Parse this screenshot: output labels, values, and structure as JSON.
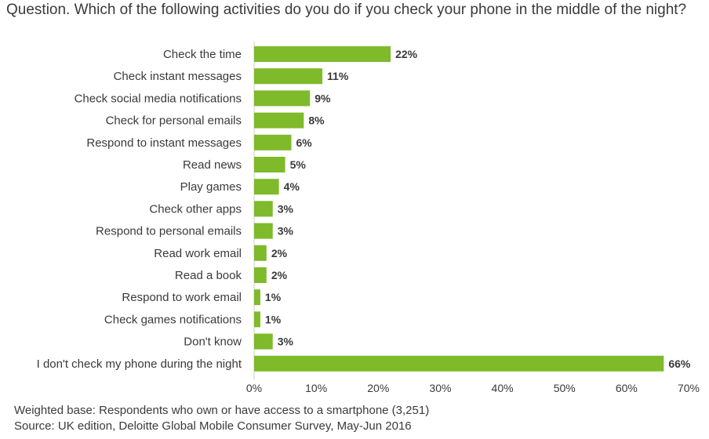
{
  "question": "Question. Which of the following activities do you do if you check your phone in the middle of the night?",
  "chart_data": {
    "type": "bar",
    "orientation": "horizontal",
    "categories": [
      "Check the time",
      "Check instant messages",
      "Check social media notifications",
      "Check for personal emails",
      "Respond to instant messages",
      "Read news",
      "Play games",
      "Check other apps",
      "Respond to personal emails",
      "Read work email",
      "Read a book",
      "Respond to work email",
      "Check games notifications",
      "Don't know",
      "I don't check my phone during the night"
    ],
    "values": [
      22,
      11,
      9,
      8,
      6,
      5,
      4,
      3,
      3,
      2,
      2,
      1,
      1,
      3,
      66
    ],
    "value_labels": [
      "22%",
      "11%",
      "9%",
      "8%",
      "6%",
      "5%",
      "4%",
      "3%",
      "3%",
      "2%",
      "2%",
      "1%",
      "1%",
      "3%",
      "66%"
    ],
    "xlim": [
      0,
      70
    ],
    "x_ticks": [
      0,
      10,
      20,
      30,
      40,
      50,
      60,
      70
    ],
    "x_tick_labels": [
      "0%",
      "10%",
      "20%",
      "30%",
      "40%",
      "50%",
      "60%",
      "70%"
    ],
    "bar_color": "#7fba2a",
    "grid": false
  },
  "notes": {
    "base": "Weighted base: Respondents who own or have access to a smartphone (3,251)",
    "source": "Source: UK edition, Deloitte Global Mobile Consumer Survey, May-Jun 2016"
  }
}
